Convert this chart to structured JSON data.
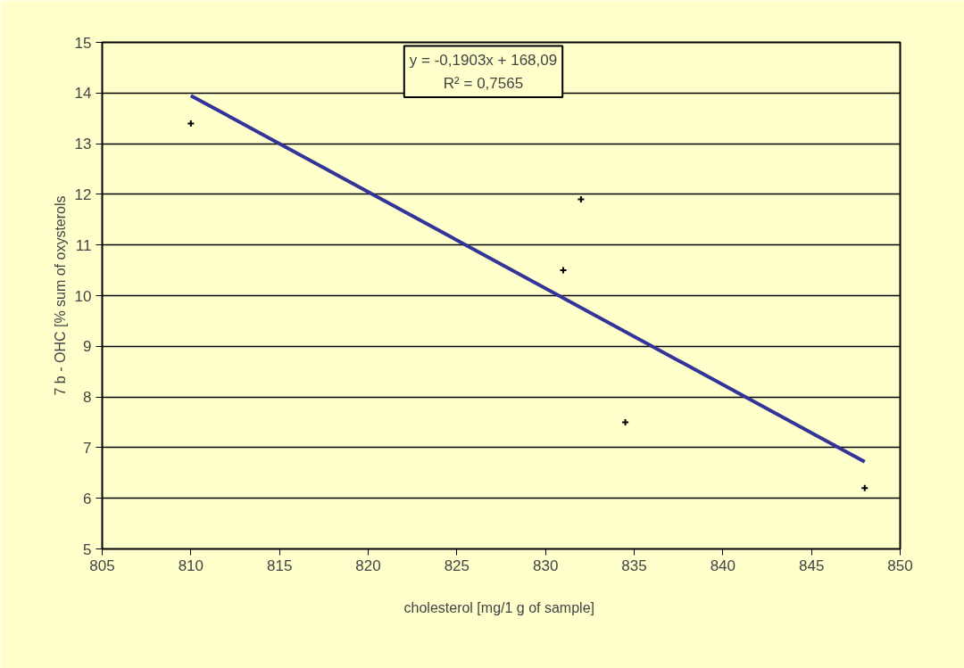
{
  "chart_data": {
    "type": "scatter",
    "xlabel": "cholesterol  [mg/1 g of sample]",
    "ylabel": "7 b - OHC [% sum of oxysterols",
    "series": [
      {
        "color": "#000000",
        "marker": "cross",
        "x": [
          810,
          832,
          831,
          834.5,
          848
        ],
        "values": [
          13.4,
          11.9,
          10.5,
          7.5,
          6.2
        ]
      },
      {
        "type": "line",
        "color": "#333399",
        "line_style": "solid",
        "x": [
          810,
          848
        ],
        "values": [
          13.95,
          6.72
        ]
      }
    ],
    "xlim": [
      805,
      850
    ],
    "xticks": [
      805,
      810,
      815,
      820,
      825,
      830,
      835,
      840,
      845,
      850
    ],
    "ylim": [
      5,
      15
    ],
    "yticks": [
      5,
      6,
      7,
      8,
      9,
      10,
      11,
      12,
      13,
      14,
      15
    ],
    "grid": "y",
    "annotations": [
      "y = -0,1903x + 168,09",
      "R² = 0,7565"
    ]
  }
}
